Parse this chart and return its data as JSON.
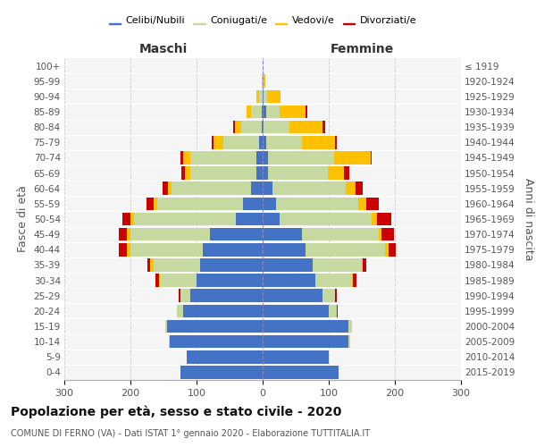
{
  "age_groups": [
    "0-4",
    "5-9",
    "10-14",
    "15-19",
    "20-24",
    "25-29",
    "30-34",
    "35-39",
    "40-44",
    "45-49",
    "50-54",
    "55-59",
    "60-64",
    "65-69",
    "70-74",
    "75-79",
    "80-84",
    "85-89",
    "90-94",
    "95-99",
    "100+"
  ],
  "birth_years": [
    "2015-2019",
    "2010-2014",
    "2005-2009",
    "2000-2004",
    "1995-1999",
    "1990-1994",
    "1985-1989",
    "1980-1984",
    "1975-1979",
    "1970-1974",
    "1965-1969",
    "1960-1964",
    "1955-1959",
    "1950-1954",
    "1945-1949",
    "1940-1944",
    "1935-1939",
    "1930-1934",
    "1925-1929",
    "1920-1924",
    "≤ 1919"
  ],
  "maschi": {
    "celibi": [
      125,
      115,
      140,
      145,
      120,
      110,
      100,
      95,
      90,
      80,
      40,
      30,
      18,
      10,
      10,
      5,
      2,
      2,
      0,
      0,
      0
    ],
    "coniugati": [
      0,
      0,
      2,
      2,
      10,
      15,
      55,
      70,
      110,
      120,
      155,
      130,
      120,
      100,
      100,
      55,
      30,
      15,
      5,
      2,
      0
    ],
    "vedovi": [
      0,
      0,
      0,
      0,
      0,
      0,
      2,
      5,
      5,
      5,
      5,
      5,
      5,
      8,
      10,
      15,
      10,
      8,
      5,
      0,
      0
    ],
    "divorziati": [
      0,
      0,
      0,
      0,
      0,
      2,
      5,
      5,
      12,
      12,
      12,
      10,
      8,
      5,
      5,
      2,
      2,
      0,
      0,
      0,
      0
    ]
  },
  "femmine": {
    "nubili": [
      115,
      100,
      130,
      130,
      100,
      90,
      80,
      75,
      65,
      60,
      25,
      20,
      15,
      8,
      8,
      5,
      2,
      5,
      2,
      0,
      0
    ],
    "coniugate": [
      0,
      0,
      2,
      5,
      12,
      20,
      55,
      75,
      120,
      115,
      140,
      125,
      110,
      90,
      100,
      55,
      38,
      20,
      5,
      2,
      0
    ],
    "vedove": [
      0,
      0,
      0,
      0,
      0,
      0,
      2,
      2,
      5,
      5,
      8,
      12,
      15,
      25,
      55,
      50,
      50,
      40,
      20,
      2,
      0
    ],
    "divorziate": [
      0,
      0,
      0,
      0,
      2,
      2,
      5,
      5,
      12,
      18,
      22,
      18,
      12,
      8,
      2,
      2,
      5,
      2,
      0,
      0,
      0
    ]
  },
  "colors": {
    "celibi_nubili": "#4472c4",
    "coniugati": "#c5d9a0",
    "vedovi": "#ffc000",
    "divorziati": "#cc0000"
  },
  "title": "Popolazione per età, sesso e stato civile - 2020",
  "subtitle": "COMUNE DI FERNO (VA) - Dati ISTAT 1° gennaio 2020 - Elaborazione TUTTITALIA.IT",
  "xlabel_left": "Maschi",
  "xlabel_right": "Femmine",
  "ylabel_left": "Fasce di età",
  "ylabel_right": "Anni di nascita",
  "xlim": 300,
  "bg_color": "#ffffff",
  "plot_bg": "#f5f5f5",
  "grid_color": "#cccccc",
  "legend_labels": [
    "Celibi/Nubili",
    "Coniugati/e",
    "Vedovi/e",
    "Divorziati/e"
  ]
}
